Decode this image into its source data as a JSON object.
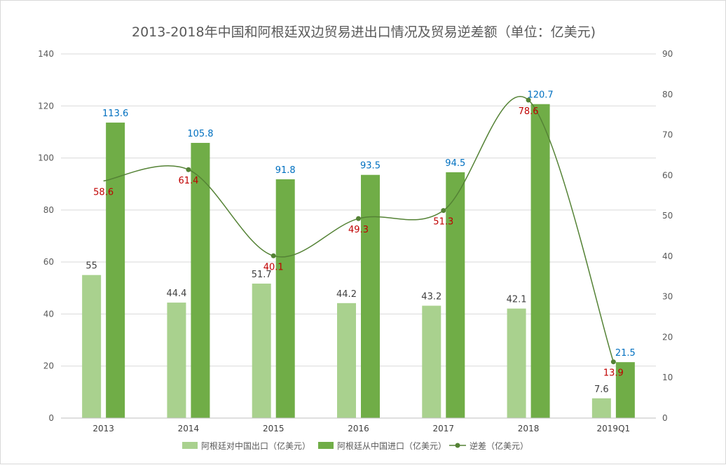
{
  "chart_data": {
    "type": "bar",
    "title": "2013-2018年中国和阿根廷双边贸易进出口情况及贸易逆差额（单位：亿美元)",
    "categories": [
      "2013",
      "2014",
      "2015",
      "2016",
      "2017",
      "2018",
      "2019Q1"
    ],
    "series": [
      {
        "name": "阿根廷对中国出口（亿美元）",
        "type": "bar",
        "axis": "left",
        "values": [
          55,
          44.4,
          51.7,
          44.2,
          43.2,
          42.1,
          7.6
        ],
        "color": "#a9d18e"
      },
      {
        "name": "阿根廷从中国进口（亿美元）",
        "type": "bar",
        "axis": "left",
        "values": [
          113.6,
          105.8,
          91.8,
          93.5,
          94.5,
          120.7,
          21.5
        ],
        "color": "#70ad47"
      },
      {
        "name": "逆差（亿美元）",
        "type": "line",
        "axis": "right",
        "values": [
          58.6,
          61.4,
          40.1,
          49.3,
          51.3,
          78.6,
          13.9
        ],
        "color": "#548235"
      }
    ],
    "ylim_left": [
      0,
      140
    ],
    "yticks_left": [
      "0",
      "20",
      "40",
      "60",
      "80",
      "100",
      "120",
      "140"
    ],
    "ylim_right": [
      0,
      90
    ],
    "yticks_right": [
      "0",
      "10",
      "20",
      "30",
      "40",
      "50",
      "60",
      "70",
      "80",
      "90"
    ],
    "grid": true,
    "legend_position": "bottom"
  }
}
